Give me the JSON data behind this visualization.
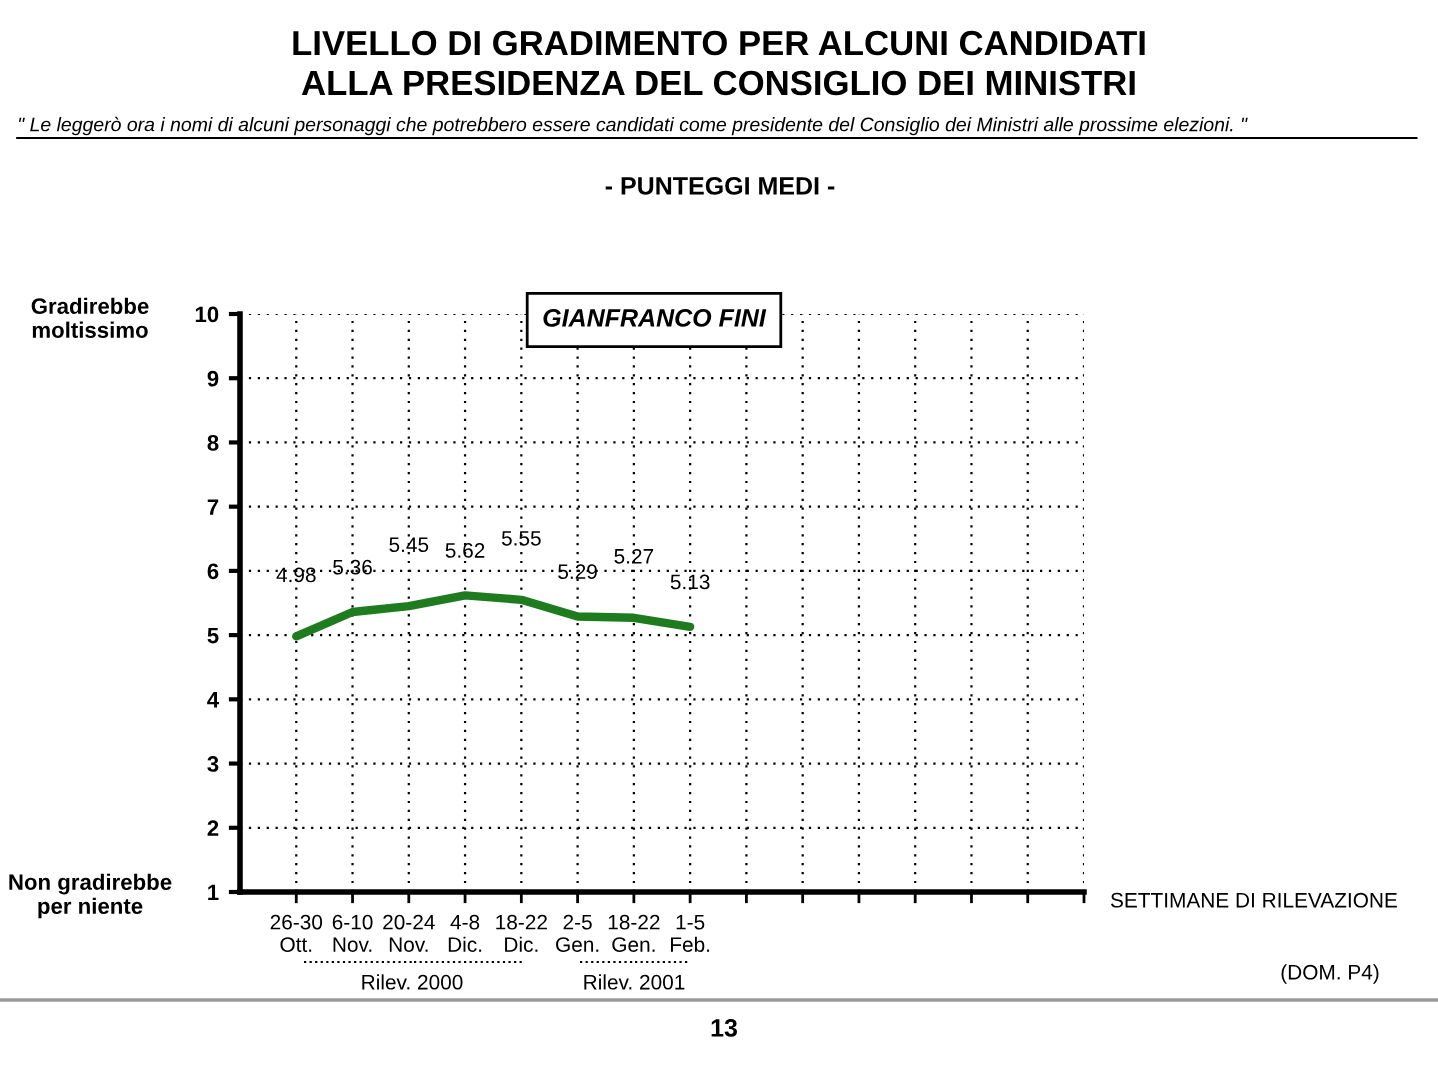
{
  "chart_data": {
    "type": "line",
    "title": "LIVELLO DI GRADIMENTO PER ALCUNI CANDIDATI\nALLA PRESIDENZA DEL CONSIGLIO DEI MINISTRI",
    "subtitle": "\" Le leggerò ora i nomi di alcuni personaggi che potrebbero essere candidati come presidente del Consiglio dei Ministri alle prossime elezioni. \"",
    "xlabel": "SETTIMANE DI RILEVAZIONE",
    "categories": [
      "26-30\nOtt.",
      "6-10\nNov.",
      "20-24\nNov.",
      "4-8\nDic.",
      "18-22\nDic.",
      "2-5\nGen.",
      "18-22\nGen.",
      "1-5\nFeb.",
      null,
      null,
      null,
      null,
      null,
      null,
      null
    ],
    "series": [
      {
        "color": "#1e7b1e",
        "values": [
          4.98,
          5.36,
          5.45,
          5.62,
          5.55,
          5.29,
          5.27,
          5.13,
          null,
          null,
          null,
          null,
          null,
          null,
          null
        ]
      }
    ],
    "ylim": [
      1,
      10
    ],
    "yticks": [
      1,
      2,
      3,
      4,
      5,
      6,
      7,
      8,
      9,
      10
    ],
    "grid": true,
    "data_labels": true,
    "marker": "none",
    "line_style": "solid",
    "legend": false,
    "annotations": [
      "- PUNTEGGI MEDI -",
      "GIANFRANCO FINI",
      "Gradirebbe\nmoltissimo",
      "Non gradirebbe\nper niente",
      "Rilev. 2000",
      "Rilev. 2001",
      "(DOM. P4)",
      "13"
    ]
  }
}
